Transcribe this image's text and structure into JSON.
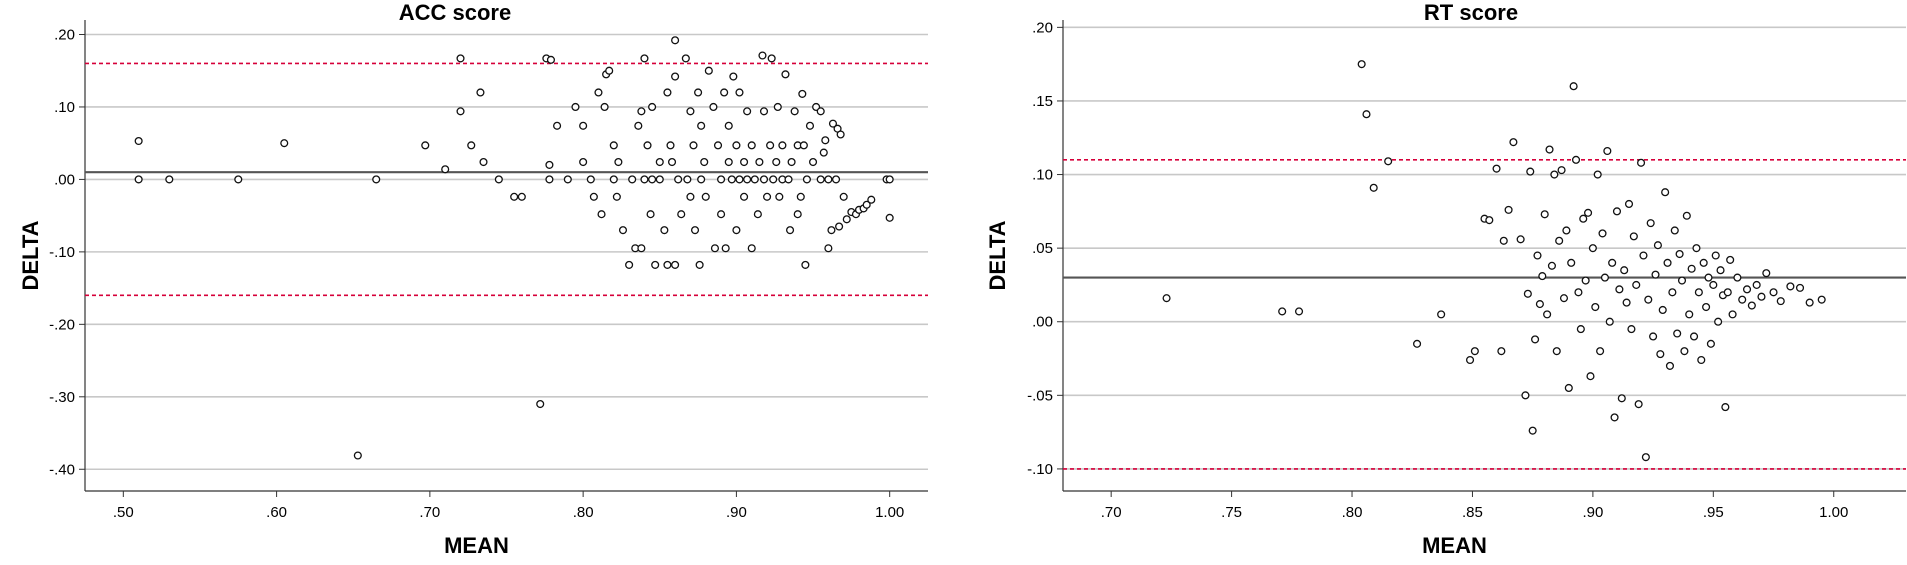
{
  "chart_data": [
    {
      "type": "scatter",
      "title": "ACC score",
      "xlabel": "MEAN",
      "ylabel": "DELTA",
      "xlim": [
        0.475,
        1.025
      ],
      "ylim": [
        -0.43,
        0.22
      ],
      "xticks": [
        0.5,
        0.6,
        0.7,
        0.8,
        0.9,
        1.0
      ],
      "xtick_labels": [
        ".50",
        ".60",
        ".70",
        ".80",
        ".90",
        "1.00"
      ],
      "yticks": [
        0.2,
        0.1,
        0.0,
        -0.1,
        -0.2,
        -0.3,
        -0.4
      ],
      "ytick_labels": [
        ".20",
        ".10",
        ".00",
        "-.10",
        "-.20",
        "-.30",
        "-.40"
      ],
      "grid": "horizontal",
      "reference_lines": {
        "mean_line": 0.01,
        "upper_limit": 0.16,
        "lower_limit": -0.16,
        "limit_color": "#d6003a",
        "mean_color": "#555555"
      },
      "points": [
        [
          0.51,
          0.053
        ],
        [
          0.51,
          0.0
        ],
        [
          0.53,
          0.0
        ],
        [
          0.575,
          0.0
        ],
        [
          0.605,
          0.05
        ],
        [
          0.653,
          -0.381
        ],
        [
          0.665,
          0.0
        ],
        [
          0.697,
          0.047
        ],
        [
          0.71,
          0.014
        ],
        [
          0.72,
          0.167
        ],
        [
          0.72,
          0.094
        ],
        [
          0.727,
          0.047
        ],
        [
          0.733,
          0.12
        ],
        [
          0.735,
          0.024
        ],
        [
          0.745,
          0.0
        ],
        [
          0.755,
          -0.024
        ],
        [
          0.76,
          -0.024
        ],
        [
          0.772,
          -0.31
        ],
        [
          0.776,
          0.167
        ],
        [
          0.778,
          0.0
        ],
        [
          0.778,
          0.02
        ],
        [
          0.779,
          0.165
        ],
        [
          0.783,
          0.074
        ],
        [
          0.79,
          0.0
        ],
        [
          0.795,
          0.1
        ],
        [
          0.8,
          0.024
        ],
        [
          0.8,
          0.074
        ],
        [
          0.805,
          0.0
        ],
        [
          0.807,
          -0.024
        ],
        [
          0.81,
          0.12
        ],
        [
          0.812,
          -0.048
        ],
        [
          0.814,
          0.1
        ],
        [
          0.815,
          0.145
        ],
        [
          0.817,
          0.15
        ],
        [
          0.82,
          0.047
        ],
        [
          0.82,
          0.0
        ],
        [
          0.822,
          -0.024
        ],
        [
          0.823,
          0.024
        ],
        [
          0.826,
          -0.07
        ],
        [
          0.83,
          -0.118
        ],
        [
          0.832,
          0.0
        ],
        [
          0.834,
          -0.095
        ],
        [
          0.836,
          0.074
        ],
        [
          0.838,
          0.094
        ],
        [
          0.838,
          -0.095
        ],
        [
          0.84,
          0.167
        ],
        [
          0.84,
          0.0
        ],
        [
          0.842,
          0.047
        ],
        [
          0.844,
          -0.048
        ],
        [
          0.845,
          0.0
        ],
        [
          0.845,
          0.1
        ],
        [
          0.847,
          -0.118
        ],
        [
          0.85,
          0.024
        ],
        [
          0.85,
          0.0
        ],
        [
          0.853,
          -0.07
        ],
        [
          0.855,
          -0.118
        ],
        [
          0.855,
          0.12
        ],
        [
          0.857,
          0.047
        ],
        [
          0.858,
          0.024
        ],
        [
          0.86,
          0.192
        ],
        [
          0.86,
          0.142
        ],
        [
          0.86,
          -0.118
        ],
        [
          0.862,
          0.0
        ],
        [
          0.864,
          -0.048
        ],
        [
          0.867,
          0.167
        ],
        [
          0.868,
          0.0
        ],
        [
          0.87,
          0.094
        ],
        [
          0.87,
          -0.024
        ],
        [
          0.872,
          0.047
        ],
        [
          0.873,
          -0.07
        ],
        [
          0.875,
          0.12
        ],
        [
          0.876,
          -0.118
        ],
        [
          0.877,
          0.074
        ],
        [
          0.877,
          0.0
        ],
        [
          0.879,
          0.024
        ],
        [
          0.88,
          -0.024
        ],
        [
          0.882,
          0.15
        ],
        [
          0.885,
          0.1
        ],
        [
          0.886,
          -0.095
        ],
        [
          0.888,
          0.047
        ],
        [
          0.89,
          0.0
        ],
        [
          0.89,
          -0.048
        ],
        [
          0.892,
          0.12
        ],
        [
          0.893,
          -0.095
        ],
        [
          0.895,
          0.024
        ],
        [
          0.895,
          0.074
        ],
        [
          0.897,
          0.0
        ],
        [
          0.898,
          0.142
        ],
        [
          0.9,
          0.047
        ],
        [
          0.9,
          -0.07
        ],
        [
          0.902,
          0.12
        ],
        [
          0.902,
          0.0
        ],
        [
          0.905,
          0.024
        ],
        [
          0.905,
          -0.024
        ],
        [
          0.907,
          0.094
        ],
        [
          0.907,
          0.0
        ],
        [
          0.91,
          -0.095
        ],
        [
          0.91,
          0.047
        ],
        [
          0.912,
          0.0
        ],
        [
          0.914,
          -0.048
        ],
        [
          0.915,
          0.024
        ],
        [
          0.917,
          0.171
        ],
        [
          0.918,
          0.094
        ],
        [
          0.918,
          0.0
        ],
        [
          0.92,
          -0.024
        ],
        [
          0.922,
          0.047
        ],
        [
          0.923,
          0.167
        ],
        [
          0.924,
          0.0
        ],
        [
          0.926,
          0.024
        ],
        [
          0.927,
          0.1
        ],
        [
          0.928,
          -0.024
        ],
        [
          0.93,
          0.0
        ],
        [
          0.93,
          0.047
        ],
        [
          0.932,
          0.145
        ],
        [
          0.934,
          0.0
        ],
        [
          0.935,
          -0.07
        ],
        [
          0.936,
          0.024
        ],
        [
          0.938,
          0.094
        ],
        [
          0.94,
          0.047
        ],
        [
          0.94,
          -0.048
        ],
        [
          0.942,
          -0.024
        ],
        [
          0.943,
          0.118
        ],
        [
          0.944,
          0.047
        ],
        [
          0.945,
          -0.118
        ],
        [
          0.946,
          0.0
        ],
        [
          0.948,
          0.074
        ],
        [
          0.95,
          0.024
        ],
        [
          0.952,
          0.1
        ],
        [
          0.955,
          0.094
        ],
        [
          0.955,
          0.0
        ],
        [
          0.957,
          0.037
        ],
        [
          0.958,
          0.054
        ],
        [
          0.96,
          0.0
        ],
        [
          0.96,
          -0.095
        ],
        [
          0.962,
          -0.07
        ],
        [
          0.963,
          0.077
        ],
        [
          0.965,
          0.0
        ],
        [
          0.966,
          0.07
        ],
        [
          0.967,
          -0.065
        ],
        [
          0.968,
          0.062
        ],
        [
          0.97,
          -0.024
        ],
        [
          0.972,
          -0.055
        ],
        [
          0.975,
          -0.045
        ],
        [
          0.978,
          -0.048
        ],
        [
          0.98,
          -0.042
        ],
        [
          0.983,
          -0.04
        ],
        [
          0.985,
          -0.035
        ],
        [
          0.988,
          -0.028
        ],
        [
          0.998,
          0.0
        ],
        [
          1.0,
          0.0
        ],
        [
          1.0,
          -0.053
        ]
      ]
    },
    {
      "type": "scatter",
      "title": "RT score",
      "xlabel": "MEAN",
      "ylabel": "DELTA",
      "xlim": [
        0.68,
        1.03
      ],
      "ylim": [
        -0.115,
        0.205
      ],
      "xticks": [
        0.7,
        0.75,
        0.8,
        0.85,
        0.9,
        0.95,
        1.0
      ],
      "xtick_labels": [
        ".70",
        ".75",
        ".80",
        ".85",
        ".90",
        ".95",
        "1.00"
      ],
      "yticks": [
        0.2,
        0.15,
        0.1,
        0.05,
        0.0,
        -0.05,
        -0.1
      ],
      "ytick_labels": [
        ".20",
        ".15",
        ".10",
        ".05",
        ".00",
        "-.05",
        "-.10"
      ],
      "grid": "horizontal",
      "reference_lines": {
        "mean_line": 0.03,
        "upper_limit": 0.11,
        "lower_limit": -0.1,
        "limit_color": "#d6003a",
        "mean_color": "#555555"
      },
      "points": [
        [
          0.723,
          0.016
        ],
        [
          0.771,
          0.007
        ],
        [
          0.778,
          0.007
        ],
        [
          0.804,
          0.175
        ],
        [
          0.806,
          0.141
        ],
        [
          0.809,
          0.091
        ],
        [
          0.815,
          0.109
        ],
        [
          0.827,
          -0.015
        ],
        [
          0.837,
          0.005
        ],
        [
          0.849,
          -0.026
        ],
        [
          0.851,
          -0.02
        ],
        [
          0.855,
          0.07
        ],
        [
          0.857,
          0.069
        ],
        [
          0.86,
          0.104
        ],
        [
          0.862,
          -0.02
        ],
        [
          0.863,
          0.055
        ],
        [
          0.865,
          0.076
        ],
        [
          0.867,
          0.122
        ],
        [
          0.87,
          0.056
        ],
        [
          0.872,
          -0.05
        ],
        [
          0.873,
          0.019
        ],
        [
          0.874,
          0.102
        ],
        [
          0.875,
          -0.074
        ],
        [
          0.876,
          -0.012
        ],
        [
          0.877,
          0.045
        ],
        [
          0.878,
          0.012
        ],
        [
          0.879,
          0.031
        ],
        [
          0.88,
          0.073
        ],
        [
          0.881,
          0.005
        ],
        [
          0.882,
          0.117
        ],
        [
          0.883,
          0.038
        ],
        [
          0.884,
          0.1
        ],
        [
          0.885,
          -0.02
        ],
        [
          0.886,
          0.055
        ],
        [
          0.887,
          0.103
        ],
        [
          0.888,
          0.016
        ],
        [
          0.889,
          0.062
        ],
        [
          0.89,
          -0.045
        ],
        [
          0.891,
          0.04
        ],
        [
          0.892,
          0.16
        ],
        [
          0.893,
          0.11
        ],
        [
          0.894,
          0.02
        ],
        [
          0.895,
          -0.005
        ],
        [
          0.896,
          0.07
        ],
        [
          0.897,
          0.028
        ],
        [
          0.898,
          0.074
        ],
        [
          0.899,
          -0.037
        ],
        [
          0.9,
          0.05
        ],
        [
          0.901,
          0.01
        ],
        [
          0.902,
          0.1
        ],
        [
          0.903,
          -0.02
        ],
        [
          0.904,
          0.06
        ],
        [
          0.905,
          0.03
        ],
        [
          0.906,
          0.116
        ],
        [
          0.907,
          0.0
        ],
        [
          0.908,
          0.04
        ],
        [
          0.909,
          -0.065
        ],
        [
          0.91,
          0.075
        ],
        [
          0.911,
          0.022
        ],
        [
          0.912,
          -0.052
        ],
        [
          0.913,
          0.035
        ],
        [
          0.914,
          0.013
        ],
        [
          0.915,
          0.08
        ],
        [
          0.916,
          -0.005
        ],
        [
          0.917,
          0.058
        ],
        [
          0.918,
          0.025
        ],
        [
          0.919,
          -0.056
        ],
        [
          0.92,
          0.108
        ],
        [
          0.921,
          0.045
        ],
        [
          0.922,
          -0.092
        ],
        [
          0.923,
          0.015
        ],
        [
          0.924,
          0.067
        ],
        [
          0.925,
          -0.01
        ],
        [
          0.926,
          0.032
        ],
        [
          0.927,
          0.052
        ],
        [
          0.928,
          -0.022
        ],
        [
          0.929,
          0.008
        ],
        [
          0.93,
          0.088
        ],
        [
          0.931,
          0.04
        ],
        [
          0.932,
          -0.03
        ],
        [
          0.933,
          0.02
        ],
        [
          0.934,
          0.062
        ],
        [
          0.935,
          -0.008
        ],
        [
          0.936,
          0.046
        ],
        [
          0.937,
          0.028
        ],
        [
          0.938,
          -0.02
        ],
        [
          0.939,
          0.072
        ],
        [
          0.94,
          0.005
        ],
        [
          0.941,
          0.036
        ],
        [
          0.942,
          -0.01
        ],
        [
          0.943,
          0.05
        ],
        [
          0.944,
          0.02
        ],
        [
          0.945,
          -0.026
        ],
        [
          0.946,
          0.04
        ],
        [
          0.947,
          0.01
        ],
        [
          0.948,
          0.03
        ],
        [
          0.949,
          -0.015
        ],
        [
          0.95,
          0.025
        ],
        [
          0.951,
          0.045
        ],
        [
          0.952,
          0.0
        ],
        [
          0.953,
          0.035
        ],
        [
          0.954,
          0.018
        ],
        [
          0.955,
          -0.058
        ],
        [
          0.956,
          0.02
        ],
        [
          0.957,
          0.042
        ],
        [
          0.958,
          0.005
        ],
        [
          0.96,
          0.03
        ],
        [
          0.962,
          0.015
        ],
        [
          0.964,
          0.022
        ],
        [
          0.966,
          0.011
        ],
        [
          0.968,
          0.025
        ],
        [
          0.97,
          0.017
        ],
        [
          0.972,
          0.033
        ],
        [
          0.975,
          0.02
        ],
        [
          0.978,
          0.014
        ],
        [
          0.982,
          0.024
        ],
        [
          0.986,
          0.023
        ],
        [
          0.99,
          0.013
        ],
        [
          0.995,
          0.015
        ]
      ]
    }
  ]
}
